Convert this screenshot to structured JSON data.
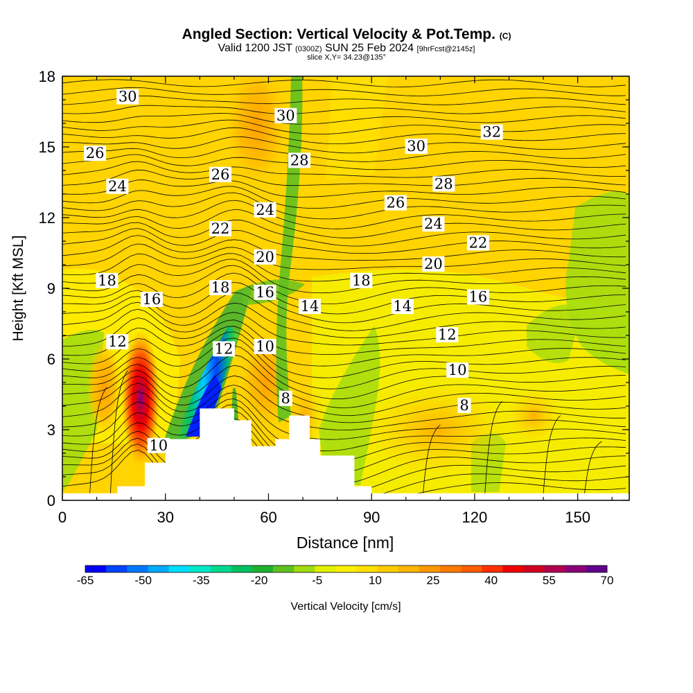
{
  "title": "Angled Section: Vertical Velocity & Pot.Temp.",
  "title_mark": "(C)",
  "valid_prefix": "Valid 1200 JST",
  "valid_utc": "(0300Z)",
  "valid_date": "SUN 25 Feb 2024",
  "forecast_info": "[9hrFcst@2145z]",
  "slice_info": "slice X,Y= 34.23@135°",
  "chart_data": {
    "type": "heatmap",
    "xlabel": "Distance [nm]",
    "ylabel": "Height [Kft MSL]",
    "xlim": [
      0,
      165
    ],
    "ylim": [
      0,
      18
    ],
    "x_ticks": [
      0,
      30,
      60,
      90,
      120,
      150
    ],
    "y_ticks": [
      0,
      3,
      6,
      9,
      12,
      15,
      18
    ],
    "colorbar": {
      "label": "Vertical Velocity [cm/s]",
      "min": -65,
      "max": 70,
      "tick_labels": [
        -65,
        -50,
        -35,
        -20,
        -5,
        10,
        25,
        40,
        55,
        70
      ],
      "colors": [
        "#0000ff",
        "#0044ff",
        "#0077ff",
        "#00aaff",
        "#00ddff",
        "#00e8c8",
        "#00d890",
        "#00c060",
        "#20b030",
        "#60c020",
        "#a0dc10",
        "#e0f000",
        "#f8f000",
        "#ffe000",
        "#ffcc00",
        "#ffb400",
        "#ff9800",
        "#ff7c00",
        "#ff5c00",
        "#ff3000",
        "#f00000",
        "#d00020",
        "#b00050",
        "#8c0078",
        "#60008c"
      ]
    },
    "terrain_profile": [
      [
        0,
        0.3
      ],
      [
        16,
        0.3
      ],
      [
        16,
        0.6
      ],
      [
        24,
        0.6
      ],
      [
        24,
        1.6
      ],
      [
        30,
        1.6
      ],
      [
        30,
        2.6
      ],
      [
        40,
        2.6
      ],
      [
        40,
        3.9
      ],
      [
        50,
        3.9
      ],
      [
        50,
        3.4
      ],
      [
        55,
        3.4
      ],
      [
        55,
        2.3
      ],
      [
        62,
        2.3
      ],
      [
        62,
        2.6
      ],
      [
        66,
        2.6
      ],
      [
        66,
        3.6
      ],
      [
        72,
        3.6
      ],
      [
        72,
        2.6
      ],
      [
        75,
        2.6
      ],
      [
        75,
        1.9
      ],
      [
        85,
        1.9
      ],
      [
        85,
        0.6
      ],
      [
        90,
        0.6
      ],
      [
        90,
        0.3
      ],
      [
        165,
        0.3
      ]
    ],
    "pot_temp_contour_labels": [
      {
        "value": "30",
        "x": 19,
        "y": 17.1
      },
      {
        "value": "26",
        "x": 9.5,
        "y": 14.7
      },
      {
        "value": "24",
        "x": 16,
        "y": 13.3
      },
      {
        "value": "30",
        "x": 65,
        "y": 16.3
      },
      {
        "value": "28",
        "x": 69,
        "y": 14.4
      },
      {
        "value": "26",
        "x": 46,
        "y": 13.8
      },
      {
        "value": "24",
        "x": 59,
        "y": 12.3
      },
      {
        "value": "22",
        "x": 46,
        "y": 11.5
      },
      {
        "value": "30",
        "x": 103,
        "y": 15.0
      },
      {
        "value": "32",
        "x": 125,
        "y": 15.6
      },
      {
        "value": "28",
        "x": 111,
        "y": 13.4
      },
      {
        "value": "26",
        "x": 97,
        "y": 12.6
      },
      {
        "value": "24",
        "x": 108,
        "y": 11.7
      },
      {
        "value": "22",
        "x": 121,
        "y": 10.9
      },
      {
        "value": "20",
        "x": 59,
        "y": 10.3
      },
      {
        "value": "20",
        "x": 108,
        "y": 10.0
      },
      {
        "value": "18",
        "x": 13,
        "y": 9.3
      },
      {
        "value": "16",
        "x": 26,
        "y": 8.5
      },
      {
        "value": "18",
        "x": 46,
        "y": 9.0
      },
      {
        "value": "16",
        "x": 59,
        "y": 8.8
      },
      {
        "value": "18",
        "x": 87,
        "y": 9.3
      },
      {
        "value": "14",
        "x": 72,
        "y": 8.2
      },
      {
        "value": "14",
        "x": 99,
        "y": 8.2
      },
      {
        "value": "16",
        "x": 121,
        "y": 8.6
      },
      {
        "value": "12",
        "x": 16,
        "y": 6.7
      },
      {
        "value": "12",
        "x": 47,
        "y": 6.4
      },
      {
        "value": "10",
        "x": 59,
        "y": 6.5
      },
      {
        "value": "12",
        "x": 112,
        "y": 7.0
      },
      {
        "value": "10",
        "x": 115,
        "y": 5.5
      },
      {
        "value": "8",
        "x": 65,
        "y": 4.3
      },
      {
        "value": "8",
        "x": 117,
        "y": 4.0
      },
      {
        "value": "10",
        "x": 28,
        "y": 2.3
      }
    ]
  }
}
